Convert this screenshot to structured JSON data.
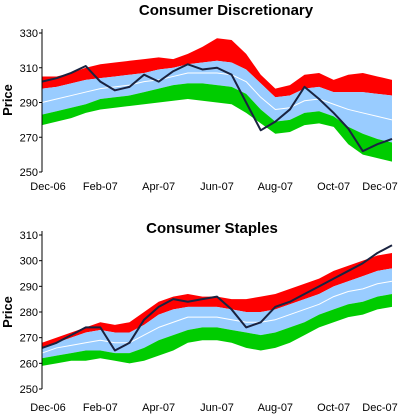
{
  "colors": {
    "red_band": "#ff0000",
    "blue_band": "#99ccff",
    "green_band": "#00cc00",
    "mean_line": "#ffffff",
    "price_line": "#1a2340"
  },
  "chart_data": [
    {
      "type": "area",
      "title": "Consumer Discretionary",
      "xlabel": "",
      "ylabel": "Price",
      "ylim": [
        250,
        330
      ],
      "yticks": [
        250,
        270,
        290,
        310,
        330
      ],
      "xlim": [
        "Dec-06",
        "Dec-07"
      ],
      "xticks": [
        "Dec-06",
        "Feb-07",
        "Apr-07",
        "Jun-07",
        "Aug-07",
        "Oct-07",
        "Dec-07"
      ],
      "x": [
        0,
        0.5,
        1,
        1.5,
        2,
        2.5,
        3,
        3.5,
        4,
        4.5,
        5,
        5.5,
        6,
        6.5,
        7,
        7.5,
        8,
        8.5,
        9,
        9.5,
        10,
        10.5,
        11,
        11.5,
        12
      ],
      "red_upper": [
        305,
        305,
        307,
        310,
        312,
        313,
        314,
        315,
        316,
        315,
        318,
        322,
        327,
        326,
        318,
        306,
        298,
        300,
        306,
        307,
        303,
        306,
        307,
        305,
        303
      ],
      "blue_upper": [
        298,
        299,
        301,
        303,
        304,
        305,
        306,
        307,
        309,
        310,
        312,
        313,
        314,
        313,
        309,
        301,
        293,
        294,
        298,
        299,
        296,
        296,
        296,
        295,
        294
      ],
      "mid": [
        290,
        292,
        294,
        296,
        298,
        299,
        300,
        302,
        303,
        305,
        307,
        307,
        307,
        306,
        302,
        293,
        286,
        287,
        291,
        292,
        289,
        286,
        284,
        282,
        280
      ],
      "blue_lower": [
        283,
        285,
        287,
        289,
        292,
        293,
        294,
        296,
        298,
        300,
        301,
        301,
        300,
        299,
        295,
        286,
        279,
        280,
        284,
        285,
        282,
        276,
        272,
        269,
        267
      ],
      "green_lower": [
        277,
        279,
        281,
        284,
        286,
        287,
        288,
        289,
        290,
        291,
        292,
        291,
        290,
        289,
        284,
        278,
        272,
        273,
        277,
        278,
        276,
        266,
        260,
        258,
        256
      ],
      "price": [
        302,
        304,
        307,
        311,
        302,
        297,
        299,
        306,
        302,
        308,
        312,
        309,
        310,
        306,
        290,
        274,
        279,
        286,
        299,
        292,
        284,
        275,
        262,
        266,
        269
      ]
    },
    {
      "type": "area",
      "title": "Consumer Staples",
      "xlabel": "",
      "ylabel": "Price",
      "ylim": [
        250,
        310
      ],
      "yticks": [
        250,
        260,
        270,
        280,
        290,
        300,
        310
      ],
      "xlim": [
        "Dec-06",
        "Dec-07"
      ],
      "xticks": [
        "Dec-06",
        "Feb-07",
        "Apr-07",
        "Jun-07",
        "Aug-07",
        "Oct-07",
        "Dec-07"
      ],
      "x": [
        0,
        0.5,
        1,
        1.5,
        2,
        2.5,
        3,
        3.5,
        4,
        4.5,
        5,
        5.5,
        6,
        6.5,
        7,
        7.5,
        8,
        8.5,
        9,
        9.5,
        10,
        10.5,
        11,
        11.5,
        12
      ],
      "red_upper": [
        268,
        270,
        272,
        274,
        276,
        275,
        276,
        280,
        284,
        286,
        287,
        286,
        286,
        285,
        285,
        286,
        287,
        289,
        291,
        293,
        296,
        298,
        300,
        302,
        303
      ],
      "blue_upper": [
        266,
        268,
        270,
        272,
        273,
        272,
        272,
        275,
        279,
        281,
        282,
        282,
        282,
        281,
        280,
        280,
        281,
        283,
        285,
        287,
        290,
        292,
        294,
        296,
        297
      ],
      "mid": [
        264,
        266,
        267,
        268,
        269,
        268,
        268,
        271,
        274,
        276,
        278,
        278,
        278,
        277,
        276,
        276,
        277,
        279,
        281,
        283,
        286,
        288,
        289,
        291,
        292
      ],
      "blue_lower": [
        262,
        263,
        264,
        265,
        265,
        264,
        264,
        266,
        269,
        271,
        273,
        274,
        274,
        273,
        272,
        271,
        272,
        274,
        276,
        279,
        281,
        283,
        284,
        286,
        287
      ],
      "green_lower": [
        259,
        260,
        261,
        261,
        262,
        261,
        260,
        261,
        263,
        265,
        268,
        269,
        269,
        268,
        266,
        265,
        266,
        268,
        271,
        274,
        276,
        278,
        279,
        281,
        282
      ],
      "price": [
        266,
        268,
        271,
        274,
        274,
        265,
        268,
        277,
        282,
        285,
        284,
        285,
        286,
        281,
        274,
        276,
        282,
        284,
        287,
        290,
        293,
        296,
        299,
        303,
        306
      ]
    }
  ]
}
